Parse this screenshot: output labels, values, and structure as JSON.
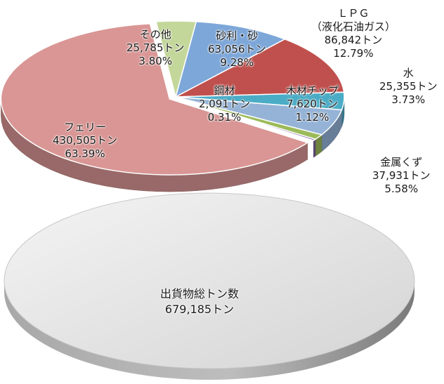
{
  "chart_data": {
    "type": "pie",
    "slices": [
      {
        "category": "砂利・砂",
        "value_text": "63,056トン",
        "percent": 9.28,
        "percent_text": "9.28%",
        "color": "#7da7d9"
      },
      {
        "category": "ＬＰＧ（液化石油ガス）",
        "category_lines": [
          "ＬＰＧ",
          "（液化石油ガス）"
        ],
        "value_text": "86,842トン",
        "percent": 12.79,
        "percent_text": "12.79%",
        "color": "#c0504d"
      },
      {
        "category": "水",
        "value_text": "25,355トン",
        "percent": 3.73,
        "percent_text": "3.73%",
        "color": "#4bacc6"
      },
      {
        "category": "金属くず",
        "value_text": "37,931トン",
        "percent": 5.58,
        "percent_text": "5.58%",
        "color": "#95b3d7"
      },
      {
        "category": "木材チップ",
        "value_text": "7,620トン",
        "percent": 1.12,
        "percent_text": "1.12%",
        "color": "#9bbb59"
      },
      {
        "category": "鋼材",
        "value_text": "2,091トン",
        "percent": 0.31,
        "percent_text": "0.31%",
        "color": "#8064a2"
      },
      {
        "category": "フェリー",
        "value_text": "430,505トン",
        "percent": 63.39,
        "percent_text": "63.39%",
        "color": "#d99694"
      },
      {
        "category": "その他",
        "value_text": "25,785トン",
        "percent": 3.8,
        "percent_text": "3.80%",
        "color": "#c4d79b"
      }
    ],
    "total": {
      "label": "出貨物総トン数",
      "value_text": "679,185トン",
      "color": "#d9d9d9"
    }
  }
}
